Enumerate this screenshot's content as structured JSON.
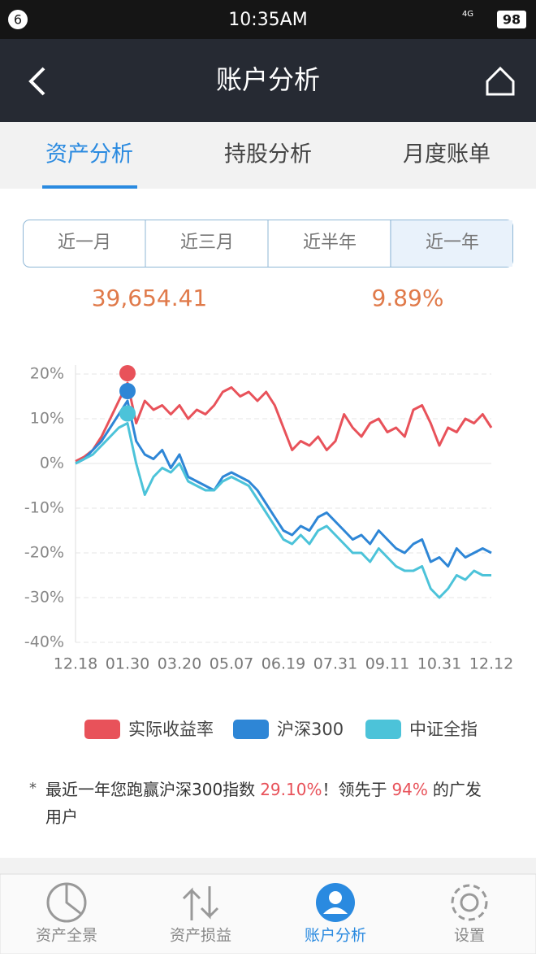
{
  "status_bar": {
    "notification": "6",
    "time": "10:35AM",
    "network": "4G",
    "battery": "98"
  },
  "header": {
    "title": "账户分析"
  },
  "tabs": [
    "资产分析",
    "持股分析",
    "月度账单"
  ],
  "period_buttons": [
    "近一月",
    "近三月",
    "近半年",
    "近一年"
  ],
  "summary": {
    "asset": "39,654.41",
    "return": "9.89%"
  },
  "chart_data": {
    "type": "line",
    "categories": [
      "12.18",
      null,
      null,
      null,
      null,
      null,
      "01.30",
      null,
      null,
      null,
      null,
      null,
      "03.20",
      null,
      null,
      null,
      null,
      null,
      "05.07",
      null,
      null,
      null,
      null,
      null,
      "06.19",
      null,
      null,
      null,
      null,
      null,
      "07.31",
      null,
      null,
      null,
      null,
      null,
      "09.11",
      null,
      null,
      null,
      null,
      null,
      "10.31",
      null,
      null,
      null,
      null,
      null,
      "12.12"
    ],
    "ylim": [
      -40,
      22
    ],
    "yticks": [
      {
        "value": -40,
        "label": "-40%"
      },
      {
        "value": -30,
        "label": "-30%"
      },
      {
        "value": -20,
        "label": "-20%"
      },
      {
        "value": -10,
        "label": "-10%"
      },
      {
        "value": 0,
        "label": "0%"
      },
      {
        "value": 10,
        "label": "10%"
      },
      {
        "value": 20,
        "label": "20%"
      }
    ],
    "grid": true,
    "series": [
      {
        "name": "实际收益率",
        "color": "#e8525a",
        "values": [
          0.5,
          1.5,
          3,
          6,
          10,
          14,
          18,
          9,
          14,
          12,
          13,
          11,
          13,
          10,
          12,
          11,
          13,
          16,
          17,
          15,
          16,
          14,
          16,
          13,
          8,
          3,
          5,
          4,
          6,
          3,
          5,
          11,
          8,
          6,
          9,
          10,
          7,
          8,
          6,
          12,
          13,
          9,
          4,
          8,
          7,
          10,
          9,
          11,
          8
        ]
      },
      {
        "name": "沪深300",
        "color": "#2e86d6",
        "values": [
          0,
          1,
          3,
          5,
          8,
          11,
          14,
          5,
          2,
          1,
          3,
          -1,
          2,
          -3,
          -4,
          -5,
          -6,
          -3,
          -2,
          -3,
          -4,
          -6,
          -9,
          -12,
          -15,
          -16,
          -14,
          -15,
          -12,
          -11,
          -13,
          -15,
          -17,
          -16,
          -18,
          -15,
          -17,
          -19,
          -20,
          -18,
          -17,
          -22,
          -21,
          -23,
          -19,
          -21,
          -20,
          -19,
          -20
        ]
      },
      {
        "name": "中证全指",
        "color": "#4cc3d9",
        "values": [
          0,
          1,
          2,
          4,
          6,
          8,
          9,
          0,
          -7,
          -3,
          -1,
          -2,
          0,
          -4,
          -5,
          -6,
          -6,
          -4,
          -3,
          -4,
          -5,
          -8,
          -11,
          -14,
          -17,
          -18,
          -16,
          -18,
          -15,
          -14,
          -16,
          -18,
          -20,
          -20,
          -22,
          -19,
          -21,
          -23,
          -24,
          -24,
          -23,
          -28,
          -30,
          -28,
          -25,
          -26,
          -24,
          -25,
          -25
        ]
      }
    ]
  },
  "footnote": {
    "bullet": "*",
    "text1": "最近一年您跑赢沪深300指数",
    "beat": "29.10%",
    "text2": "！领先于",
    "rank": "94%",
    "text3": "的广发",
    "text4": "用户"
  },
  "bottom_nav": [
    "资产全景",
    "资产损益",
    "账户分析",
    "设置"
  ]
}
